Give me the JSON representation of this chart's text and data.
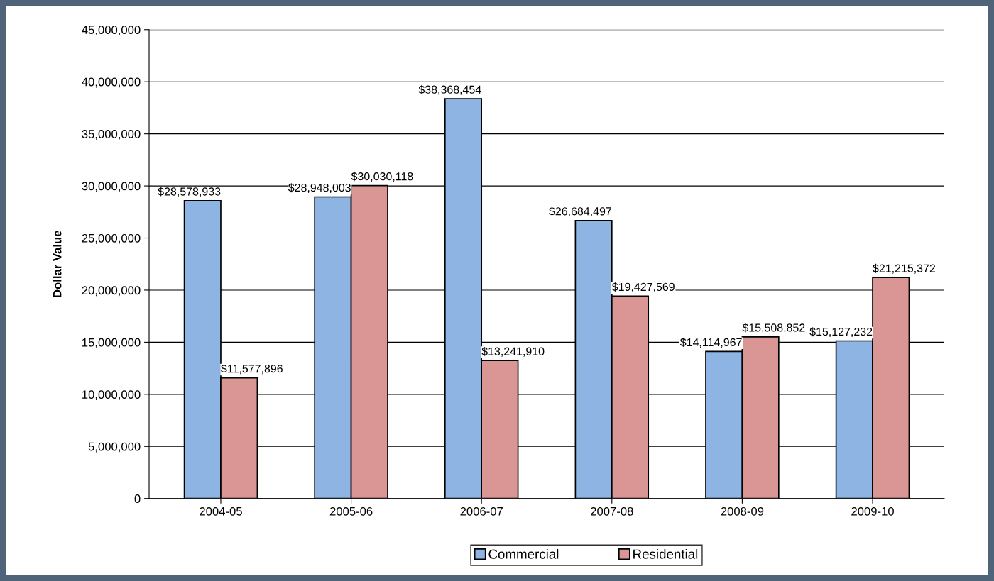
{
  "chart_data": {
    "type": "bar",
    "ylabel": "Dollar Value",
    "categories": [
      "2004-05",
      "2005-06",
      "2006-07",
      "2007-08",
      "2008-09",
      "2009-10"
    ],
    "series": [
      {
        "name": "Commercial",
        "color": "#8eb4e3",
        "values": [
          28578933,
          28948003,
          38368454,
          26684497,
          14114967,
          15127232
        ],
        "value_labels": [
          "$28,578,933",
          "$28,948,003",
          "$38,368,454",
          "$26,684,497",
          "$14,114,967",
          "$15,127,232"
        ]
      },
      {
        "name": "Residential",
        "color": "#d99694",
        "values": [
          11577896,
          30030118,
          13241910,
          19427569,
          15508852,
          21215372
        ],
        "value_labels": [
          "$11,577,896",
          "$30,030,118",
          "$13,241,910",
          "$19,427,569",
          "$15,508,852",
          "$21,215,372"
        ]
      }
    ],
    "ylim": [
      0,
      45000000
    ],
    "yticks": [
      {
        "value": 0,
        "label": "0"
      },
      {
        "value": 5000000,
        "label": "5,000,000"
      },
      {
        "value": 10000000,
        "label": "10,000,000"
      },
      {
        "value": 15000000,
        "label": "15,000,000"
      },
      {
        "value": 20000000,
        "label": "20,000,000"
      },
      {
        "value": 25000000,
        "label": "25,000,000"
      },
      {
        "value": 30000000,
        "label": "30,000,000"
      },
      {
        "value": 35000000,
        "label": "35,000,000"
      },
      {
        "value": 40000000,
        "label": "40,000,000"
      },
      {
        "value": 45000000,
        "label": "45,000,000"
      }
    ],
    "grid": "y",
    "legend": "bottom"
  }
}
